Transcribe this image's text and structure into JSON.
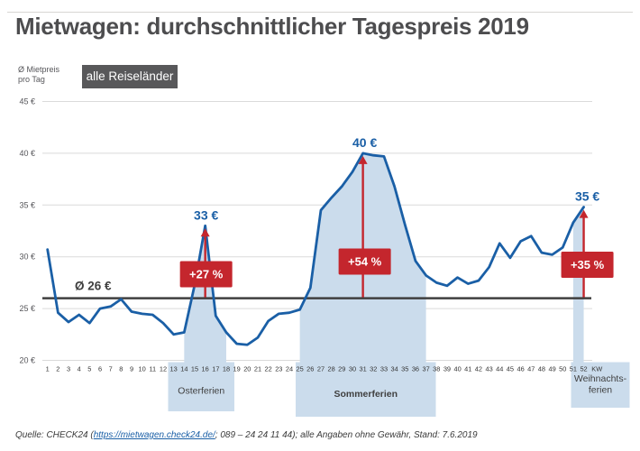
{
  "page": {
    "title": "Mietwagen: durchschnittlicher Tagespreis 2019"
  },
  "legend": {
    "axis_unit_line1": "Ø Mietpreis",
    "axis_unit_line2": "pro Tag",
    "filter_badge": "alle Reiseländer"
  },
  "footer": {
    "prefix": "Quelle: CHECK24 (",
    "link": "https://mietwagen.check24.de/",
    "suffix": "; 089 – 24 24 11 44); alle Angaben ohne Gewähr, Stand: 7.6.2019"
  },
  "chart_data": {
    "type": "line",
    "title": "Mietwagen: durchschnittlicher Tagespreis 2019",
    "ylabel": "Ø Mietpreis pro Tag",
    "x_unit": "KW",
    "x": [
      1,
      2,
      3,
      4,
      5,
      6,
      7,
      8,
      9,
      10,
      11,
      12,
      13,
      14,
      15,
      16,
      17,
      18,
      19,
      20,
      21,
      22,
      23,
      24,
      25,
      26,
      27,
      28,
      29,
      30,
      31,
      32,
      33,
      34,
      35,
      36,
      37,
      38,
      39,
      40,
      41,
      42,
      43,
      44,
      45,
      46,
      47,
      48,
      49,
      50,
      51,
      52
    ],
    "values": [
      30.7,
      24.6,
      23.7,
      24.4,
      23.6,
      25.0,
      25.2,
      25.9,
      24.7,
      24.5,
      24.4,
      23.6,
      22.5,
      22.7,
      27.3,
      33.0,
      24.3,
      22.7,
      21.6,
      21.5,
      22.2,
      23.8,
      24.5,
      24.6,
      24.9,
      27.0,
      34.5,
      35.7,
      36.8,
      38.2,
      40.0,
      39.8,
      39.7,
      36.8,
      33.1,
      29.6,
      28.2,
      27.5,
      27.2,
      28.0,
      27.4,
      27.7,
      29.0,
      31.3,
      29.9,
      31.5,
      32.0,
      30.4,
      30.2,
      30.9,
      33.3,
      34.8
    ],
    "ylim": [
      20,
      45
    ],
    "yticks": [
      45,
      40,
      35,
      30,
      25,
      20
    ],
    "ytick_suffix": " €",
    "grid": true,
    "legend_position": "top-left",
    "average": {
      "value": 26,
      "label": "Ø 26 €"
    },
    "holidays": [
      {
        "id": "osterferien",
        "start_week": 14,
        "end_week": 18,
        "bold": false,
        "label_lines": [
          "Osterferien"
        ]
      },
      {
        "id": "sommerferien",
        "start_week": 25,
        "end_week": 37,
        "bold": true,
        "label_lines": [
          "Sommerferien"
        ]
      },
      {
        "id": "weihnachtsferien",
        "start_week": 51,
        "end_week": 52,
        "bold": false,
        "label_lines": [
          "Weihnachts-",
          "ferien"
        ]
      }
    ],
    "annotations": [
      {
        "week": 16,
        "peak_label": "33 €",
        "change_label": "+27 %"
      },
      {
        "week": 31,
        "peak_label": "40 €",
        "change_label": "+54 %"
      },
      {
        "week": 52,
        "peak_label": "35 €",
        "change_label": "+35 %"
      }
    ],
    "colors": {
      "line": "#1a5fa6",
      "label_blue": "#1a5fa6",
      "holiday_fill": "#cbdcec",
      "accent_red": "#c4262d",
      "average_line": "#3f3f3f",
      "grid": "#dadada",
      "badge_bg": "#58585a",
      "text_gray": "#4d4d4f"
    }
  }
}
